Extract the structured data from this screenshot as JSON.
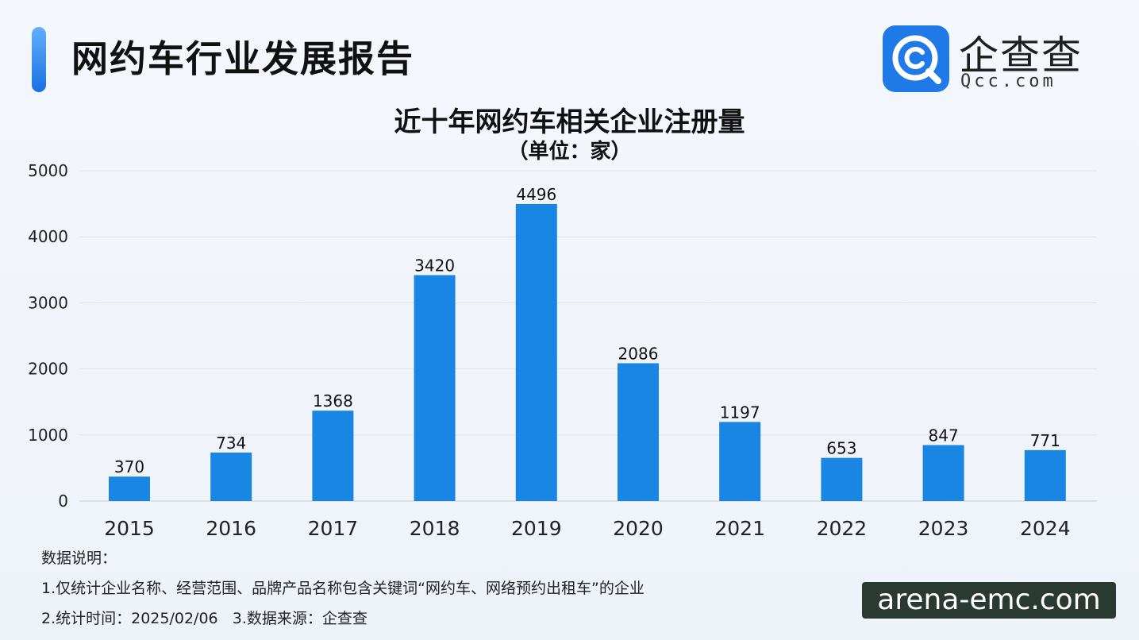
{
  "header": {
    "title": "网约车行业发展报告"
  },
  "logo": {
    "name_cn": "企查查",
    "domain": "Qcc.com"
  },
  "notes": {
    "heading": "数据说明：",
    "line1": "1.仅统计企业名称、经营范围、品牌产品名称包含关键词“网约车、网络预约出租车”的企业",
    "line2": "2.统计时间：2025/02/06   3.数据来源：企查查"
  },
  "watermark": "arena-emc.com",
  "colors": {
    "bar": "#1a86e3",
    "accent": "#1b6fe0",
    "brand": "#1f7ae8"
  },
  "chart_data": {
    "type": "bar",
    "title": "近十年网约车相关企业注册量",
    "subtitle": "（单位：家）",
    "categories": [
      "2015",
      "2016",
      "2017",
      "2018",
      "2019",
      "2020",
      "2021",
      "2022",
      "2023",
      "2024"
    ],
    "values": [
      370,
      734,
      1368,
      3420,
      4496,
      2086,
      1197,
      653,
      847,
      771
    ],
    "ylim": [
      0,
      5000
    ],
    "yticks": [
      0,
      1000,
      2000,
      3000,
      4000,
      5000
    ],
    "xlabel": "",
    "ylabel": "",
    "grid": true,
    "legend": false
  }
}
